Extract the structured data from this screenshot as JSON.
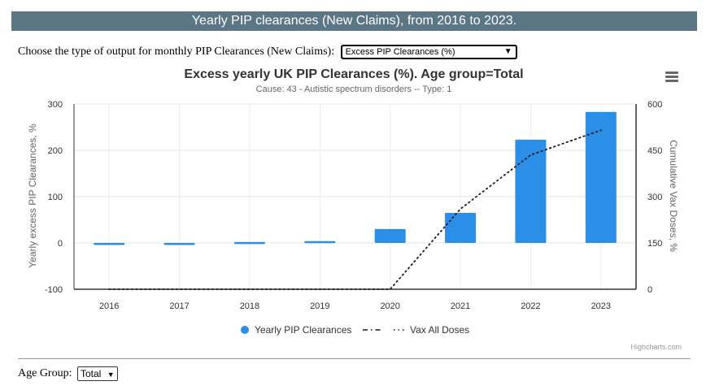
{
  "banner": {
    "title": "Yearly PIP clearances (New Claims), from 2016 to 2023."
  },
  "output_chooser": {
    "label": "Choose the type of output for monthly PIP Clearances (New Claims):",
    "selected": "Excess PIP Clearances (%)"
  },
  "menu_icon": "hamburger-menu-icon",
  "age_group": {
    "label": "Age Group:",
    "selected": "Total"
  },
  "credits": "Highcharts.com",
  "colors": {
    "banner": "#5b7684",
    "bar": "#2b8fe8",
    "line": "#1a1a1a"
  },
  "chart_data": {
    "type": "bar",
    "title": "Excess yearly UK PIP Clearances (%). Age group=Total",
    "subtitle": "Cause: 43 - Autistic spectrum disorders -- Type: 1",
    "categories": [
      "2016",
      "2017",
      "2018",
      "2019",
      "2020",
      "2021",
      "2022",
      "2023"
    ],
    "ylabel_left": "Yearly excess PIP Clearances, %",
    "ylabel_right": "Cumulative Vax Doses, %",
    "ylim_left": [
      -100,
      300
    ],
    "yticks_left": [
      "-100",
      "0",
      "100",
      "200",
      "300"
    ],
    "ylim_right": [
      0,
      600
    ],
    "yticks_right": [
      "0",
      "150",
      "300",
      "450",
      "600"
    ],
    "grid": true,
    "legend_position": "bottom-center",
    "series": [
      {
        "name": "Yearly PIP Clearances",
        "type": "column",
        "axis": "left",
        "values": [
          -4,
          -2,
          2,
          4,
          30,
          65,
          223,
          283
        ]
      },
      {
        "name": "Vax All Doses",
        "type": "dotted-line",
        "axis": "right",
        "values": [
          0,
          0,
          0,
          0,
          0,
          260,
          435,
          515
        ]
      }
    ]
  }
}
